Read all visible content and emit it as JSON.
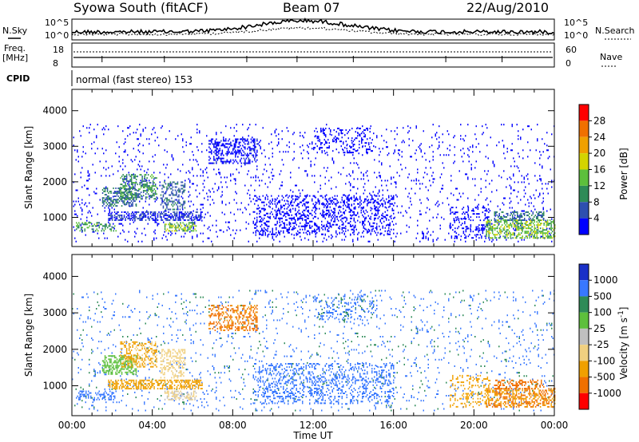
{
  "header": {
    "station": "Syowa South (fitACF)",
    "beam": "Beam 07",
    "date": "22/Aug/2010"
  },
  "top_panels": {
    "nsky_label": "N.Sky",
    "nsky_ticks": [
      "10^5",
      "10^0"
    ],
    "nsearch_label": "N.Search",
    "nsearch_ticks": [
      "10^5",
      "10^0"
    ],
    "freq_label": "Freq.",
    "freq_unit": "[MHz]",
    "freq_ticks": [
      "18",
      "8"
    ],
    "nave_label": "Nave",
    "nave_ticks": [
      "60",
      "0"
    ],
    "cpid_label": "CPID",
    "cpid_text": "normal (fast stereo) 153"
  },
  "chart_data": [
    {
      "type": "heatmap",
      "panel": "power",
      "ylabel": "Slant Range [km]",
      "ylim": [
        180,
        4600
      ],
      "yticks": [
        1000,
        2000,
        3000,
        4000
      ],
      "xlim": [
        0,
        24
      ],
      "colorbar_label": "Power [dB]",
      "colorbar_ticks": [
        "4",
        "8",
        "12",
        "16",
        "20",
        "24",
        "28"
      ],
      "colorbar_colors": [
        "#0000ff",
        "#2e4fb0",
        "#2e8b57",
        "#5dc03c",
        "#d4d400",
        "#f0a000",
        "#f07000",
        "#ff0000"
      ],
      "regions": [
        {
          "x": [
            0.0,
            24.0
          ],
          "y": [
            300,
            3600
          ],
          "v": 4,
          "d": 0.05
        },
        {
          "x": [
            0.2,
            2.2
          ],
          "y": [
            600,
            850
          ],
          "v": 14,
          "d": 0.35
        },
        {
          "x": [
            1.5,
            3.2
          ],
          "y": [
            1300,
            1800
          ],
          "v": 10,
          "d": 0.5
        },
        {
          "x": [
            2.4,
            4.2
          ],
          "y": [
            1500,
            2200
          ],
          "v": 12,
          "d": 0.45
        },
        {
          "x": [
            1.8,
            6.5
          ],
          "y": [
            900,
            1150
          ],
          "v": 6,
          "d": 0.55
        },
        {
          "x": [
            4.4,
            5.6
          ],
          "y": [
            1200,
            2000
          ],
          "v": 9,
          "d": 0.35
        },
        {
          "x": [
            4.6,
            6.2
          ],
          "y": [
            600,
            850
          ],
          "v": 16,
          "d": 0.5
        },
        {
          "x": [
            6.8,
            9.2
          ],
          "y": [
            2500,
            3200
          ],
          "v": 5,
          "d": 0.4
        },
        {
          "x": [
            9.0,
            16.0
          ],
          "y": [
            500,
            1600
          ],
          "v": 4,
          "d": 0.25
        },
        {
          "x": [
            12.0,
            15.0
          ],
          "y": [
            2800,
            3500
          ],
          "v": 4,
          "d": 0.18
        },
        {
          "x": [
            18.8,
            20.8
          ],
          "y": [
            400,
            1300
          ],
          "v": 4,
          "d": 0.22
        },
        {
          "x": [
            20.6,
            24.0
          ],
          "y": [
            400,
            900
          ],
          "v": 16,
          "d": 0.5
        },
        {
          "x": [
            21.0,
            23.5
          ],
          "y": [
            900,
            1150
          ],
          "v": 10,
          "d": 0.4
        }
      ]
    },
    {
      "type": "heatmap",
      "panel": "velocity",
      "ylabel": "Slant Range [km]",
      "ylim": [
        180,
        4600
      ],
      "yticks": [
        1000,
        2000,
        3000,
        4000
      ],
      "xlim": [
        0,
        24
      ],
      "xlabel": "Time UT",
      "xticks": [
        "00:00",
        "04:00",
        "08:00",
        "12:00",
        "16:00",
        "20:00",
        "00:00"
      ],
      "colorbar_label": "Velocity [m s^-1]",
      "colorbar_ticks": [
        "1000",
        "500",
        "100",
        "25",
        "-25",
        "-100",
        "-500",
        "-1000"
      ],
      "colorbar_colors": [
        "#1a30c8",
        "#3878ff",
        "#2e8b57",
        "#5dc03c",
        "#c0c0c0",
        "#f0d080",
        "#f0a000",
        "#f07000",
        "#ff0000"
      ],
      "regions": [
        {
          "x": [
            0.0,
            24.0
          ],
          "y": [
            300,
            3600
          ],
          "v": 600,
          "d": 0.045
        },
        {
          "x": [
            0.2,
            2.2
          ],
          "y": [
            600,
            850
          ],
          "v": 700,
          "d": 0.35
        },
        {
          "x": [
            1.5,
            3.2
          ],
          "y": [
            1300,
            1800
          ],
          "v": 60,
          "d": 0.5
        },
        {
          "x": [
            2.4,
            4.2
          ],
          "y": [
            1500,
            2200
          ],
          "v": -120,
          "d": 0.45
        },
        {
          "x": [
            1.8,
            6.5
          ],
          "y": [
            900,
            1150
          ],
          "v": -300,
          "d": 0.55
        },
        {
          "x": [
            4.4,
            5.6
          ],
          "y": [
            1200,
            2000
          ],
          "v": -60,
          "d": 0.35
        },
        {
          "x": [
            4.6,
            6.2
          ],
          "y": [
            600,
            850
          ],
          "v": -25,
          "d": 0.5
        },
        {
          "x": [
            6.8,
            9.2
          ],
          "y": [
            2500,
            3200
          ],
          "v": -600,
          "d": 0.4
        },
        {
          "x": [
            9.0,
            16.0
          ],
          "y": [
            500,
            1600
          ],
          "v": 700,
          "d": 0.25
        },
        {
          "x": [
            12.0,
            15.0
          ],
          "y": [
            2800,
            3500
          ],
          "v": 600,
          "d": 0.18
        },
        {
          "x": [
            18.8,
            20.8
          ],
          "y": [
            400,
            1300
          ],
          "v": -300,
          "d": 0.22
        },
        {
          "x": [
            20.6,
            24.0
          ],
          "y": [
            400,
            900
          ],
          "v": -500,
          "d": 0.5
        },
        {
          "x": [
            21.0,
            23.5
          ],
          "y": [
            900,
            1150
          ],
          "v": -700,
          "d": 0.4
        }
      ]
    }
  ]
}
